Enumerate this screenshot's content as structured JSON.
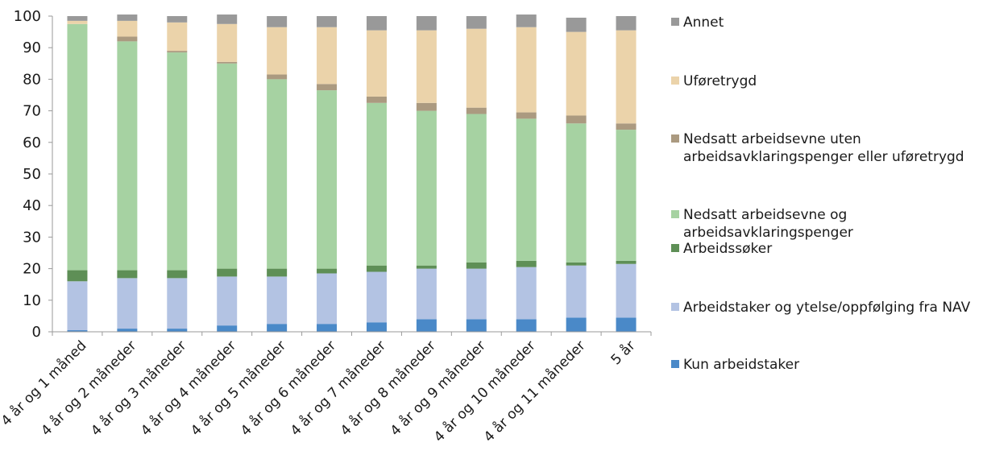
{
  "chart_data": {
    "type": "bar",
    "stacked": true,
    "ylim": [
      0,
      100
    ],
    "ystep": 10,
    "grid": false,
    "legend_position": "right",
    "categories": [
      "4 år og 1 måned",
      "4 år og 2 måneder",
      "4 år og 3 måneder",
      "4 år og 4 måneder",
      "4 år og 5 måneder",
      "4 år og 6 måneder",
      "4 år og 7 måneder",
      "4 år og 8 måneder",
      "4 år og 9 måneder",
      "4 år og 10 måneder",
      "4 år og 11 måneder",
      "5 år"
    ],
    "series": [
      {
        "name": "Kun arbeidstaker",
        "color": "#4a89c8",
        "values": [
          0.5,
          1,
          1,
          2,
          2.5,
          2.5,
          3,
          4,
          4,
          4,
          4.5,
          4.5
        ]
      },
      {
        "name": "Arbeidstaker og ytelse/oppfølging fra NAV",
        "color": "#b3c3e3",
        "values": [
          15.5,
          16,
          16,
          15.5,
          15,
          16,
          16,
          16,
          16,
          16.5,
          16.5,
          17
        ]
      },
      {
        "name": "Arbeidssøker",
        "color": "#5e8f56",
        "values": [
          3.5,
          2.5,
          2.5,
          2.5,
          2.5,
          1.5,
          2,
          1,
          2,
          2,
          1,
          1
        ]
      },
      {
        "name": "Nedsatt arbeidsevne og arbeidsavklaringspenger",
        "color": "#a6d2a2",
        "values": [
          78,
          72.5,
          69,
          65,
          60,
          56.5,
          51.5,
          49,
          47,
          45,
          44,
          41.5
        ]
      },
      {
        "name": "Nedsatt arbeidsevne uten arbeidsavklaringspenger eller uføretrygd",
        "color": "#ab9a80",
        "values": [
          0,
          1.5,
          0.5,
          0.5,
          1.5,
          2,
          2,
          2.5,
          2,
          2,
          2.5,
          2
        ]
      },
      {
        "name": "Uføretrygd",
        "color": "#ebd3aa",
        "values": [
          1,
          5,
          9,
          12,
          15,
          18,
          21,
          23,
          25,
          27,
          26.5,
          29.5
        ]
      },
      {
        "name": "Annet",
        "color": "#999999",
        "values": [
          1.5,
          2,
          2,
          3,
          3.5,
          3.5,
          4.5,
          4.5,
          4,
          4,
          4.5,
          4.5
        ]
      }
    ]
  }
}
